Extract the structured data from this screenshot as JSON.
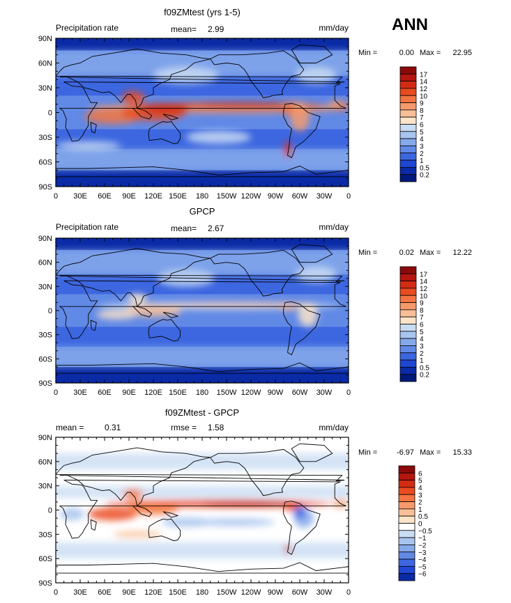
{
  "season_label": "ANN",
  "chart_data": [
    {
      "type": "heatmap",
      "title": "f09ZMtest (yrs 1-5)",
      "left_label": "Precipitation rate",
      "mid_label": "mean=",
      "mid_value": "2.99",
      "units": "mm/day",
      "min_label": "Min =",
      "min_value": "0.00",
      "max_label": "Max =",
      "max_value": "22.95",
      "field": "model",
      "x_ticks": [
        "0",
        "30E",
        "60E",
        "90E",
        "120E",
        "150E",
        "180",
        "150W",
        "120W",
        "90W",
        "60W",
        "30W",
        "0"
      ],
      "y_ticks": [
        "90N",
        "60N",
        "30N",
        "0",
        "30S",
        "60S",
        "90S"
      ],
      "colorbar": {
        "labels": [
          "17",
          "14",
          "12",
          "10",
          "9",
          "8",
          "7",
          "6",
          "5",
          "4",
          "3",
          "2",
          "1",
          "0.5",
          "0.2"
        ],
        "colors": [
          "#8c0a0a",
          "#b5150f",
          "#d42b15",
          "#ea4b20",
          "#f47541",
          "#f79a6b",
          "#f8bf98",
          "#fde4c8",
          "#c9dcf3",
          "#a8c4ef",
          "#86a9eb",
          "#6189e6",
          "#3d67e0",
          "#1f47d4",
          "#0a2aa6",
          "#001a7a"
        ]
      }
    },
    {
      "type": "heatmap",
      "title": "GPCP",
      "left_label": "Precipitation rate",
      "mid_label": "mean=",
      "mid_value": "2.67",
      "units": "mm/day",
      "min_label": "Min =",
      "min_value": "0.02",
      "max_label": "Max =",
      "max_value": "12.22",
      "field": "obs",
      "x_ticks": [
        "0",
        "30E",
        "60E",
        "90E",
        "120E",
        "150E",
        "180",
        "150W",
        "120W",
        "90W",
        "60W",
        "30W",
        "0"
      ],
      "y_ticks": [
        "90N",
        "60N",
        "30N",
        "0",
        "30S",
        "60S",
        "90S"
      ],
      "colorbar": {
        "labels": [
          "17",
          "14",
          "12",
          "10",
          "9",
          "8",
          "7",
          "6",
          "5",
          "4",
          "3",
          "2",
          "1",
          "0.5",
          "0.2"
        ],
        "colors": [
          "#8c0a0a",
          "#b5150f",
          "#d42b15",
          "#ea4b20",
          "#f47541",
          "#f79a6b",
          "#f8bf98",
          "#fde4c8",
          "#c9dcf3",
          "#a8c4ef",
          "#86a9eb",
          "#6189e6",
          "#3d67e0",
          "#1f47d4",
          "#0a2aa6",
          "#001a7a"
        ]
      }
    },
    {
      "type": "heatmap",
      "title": "f09ZMtest - GPCP",
      "left_label": "mean =",
      "left_value": "0.31",
      "mid_label": "rmse =",
      "mid_value": "1.58",
      "units": "mm/day",
      "min_label": "Min =",
      "min_value": "-6.97",
      "max_label": "Max =",
      "max_value": "15.33",
      "field": "diff",
      "x_ticks": [
        "0",
        "30E",
        "60E",
        "90E",
        "120E",
        "150E",
        "180",
        "150W",
        "120W",
        "90W",
        "60W",
        "30W",
        "0"
      ],
      "y_ticks": [
        "90N",
        "60N",
        "30N",
        "0",
        "30S",
        "60S",
        "90S"
      ],
      "colorbar": {
        "labels": [
          "6",
          "5",
          "4",
          "3",
          "2",
          "1",
          "0.5",
          "0",
          "−0.5",
          "−1",
          "−2",
          "−3",
          "−4",
          "−5",
          "−6"
        ],
        "colors": [
          "#8c0a0a",
          "#b5150f",
          "#d42b15",
          "#ea4b20",
          "#f47541",
          "#f79a6b",
          "#f8bf98",
          "#fde4c8",
          "#ffffff",
          "#c9dcf3",
          "#a8c4ef",
          "#86a9eb",
          "#6189e6",
          "#3d67e0",
          "#1f47d4",
          "#0a2aa6"
        ]
      }
    }
  ]
}
